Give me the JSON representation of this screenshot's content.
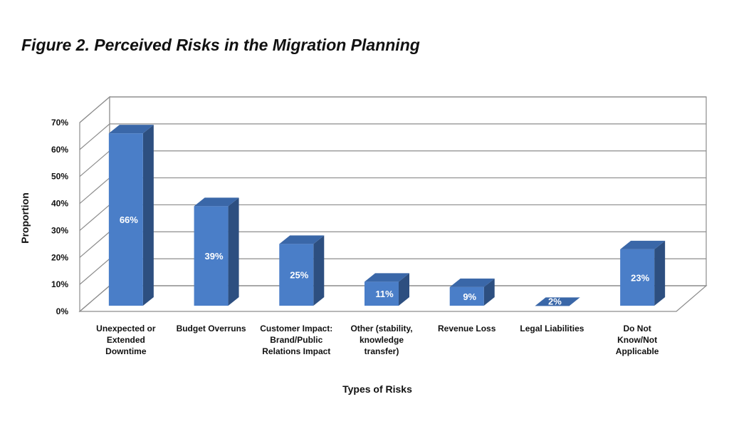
{
  "figure": {
    "title": "Figure 2. Perceived Risks in the Migration Planning"
  },
  "chart_data": {
    "type": "bar",
    "title": "Figure 2. Perceived Risks in the Migration Planning",
    "xlabel": "Types of Risks",
    "ylabel": "Proportion",
    "ylim": [
      0,
      70
    ],
    "yticks": [
      "0%",
      "10%",
      "20%",
      "30%",
      "40%",
      "50%",
      "60%",
      "70%"
    ],
    "grid": true,
    "legend": "none",
    "categories": [
      [
        "Unexpected or",
        "Extended",
        "Downtime"
      ],
      [
        "Budget Overruns"
      ],
      [
        "Customer Impact:",
        "Brand/Public",
        "Relations Impact"
      ],
      [
        "Other (stability,",
        "knowledge",
        "transfer)"
      ],
      [
        "Revenue Loss"
      ],
      [
        "Legal Liabilities"
      ],
      [
        "Do Not",
        "Know/Not",
        "Applicable"
      ]
    ],
    "values": [
      66,
      39,
      25,
      11,
      9,
      2,
      23
    ],
    "data_labels": [
      "66%",
      "39%",
      "25%",
      "11%",
      "9%",
      "2%",
      "23%"
    ],
    "colors": {
      "bar_front": "#4A7EC8",
      "bar_side": "#2D4F80",
      "bar_top": "#3A67A8",
      "grid": "#8C8C8C",
      "wall": "#FFFFFF"
    }
  }
}
